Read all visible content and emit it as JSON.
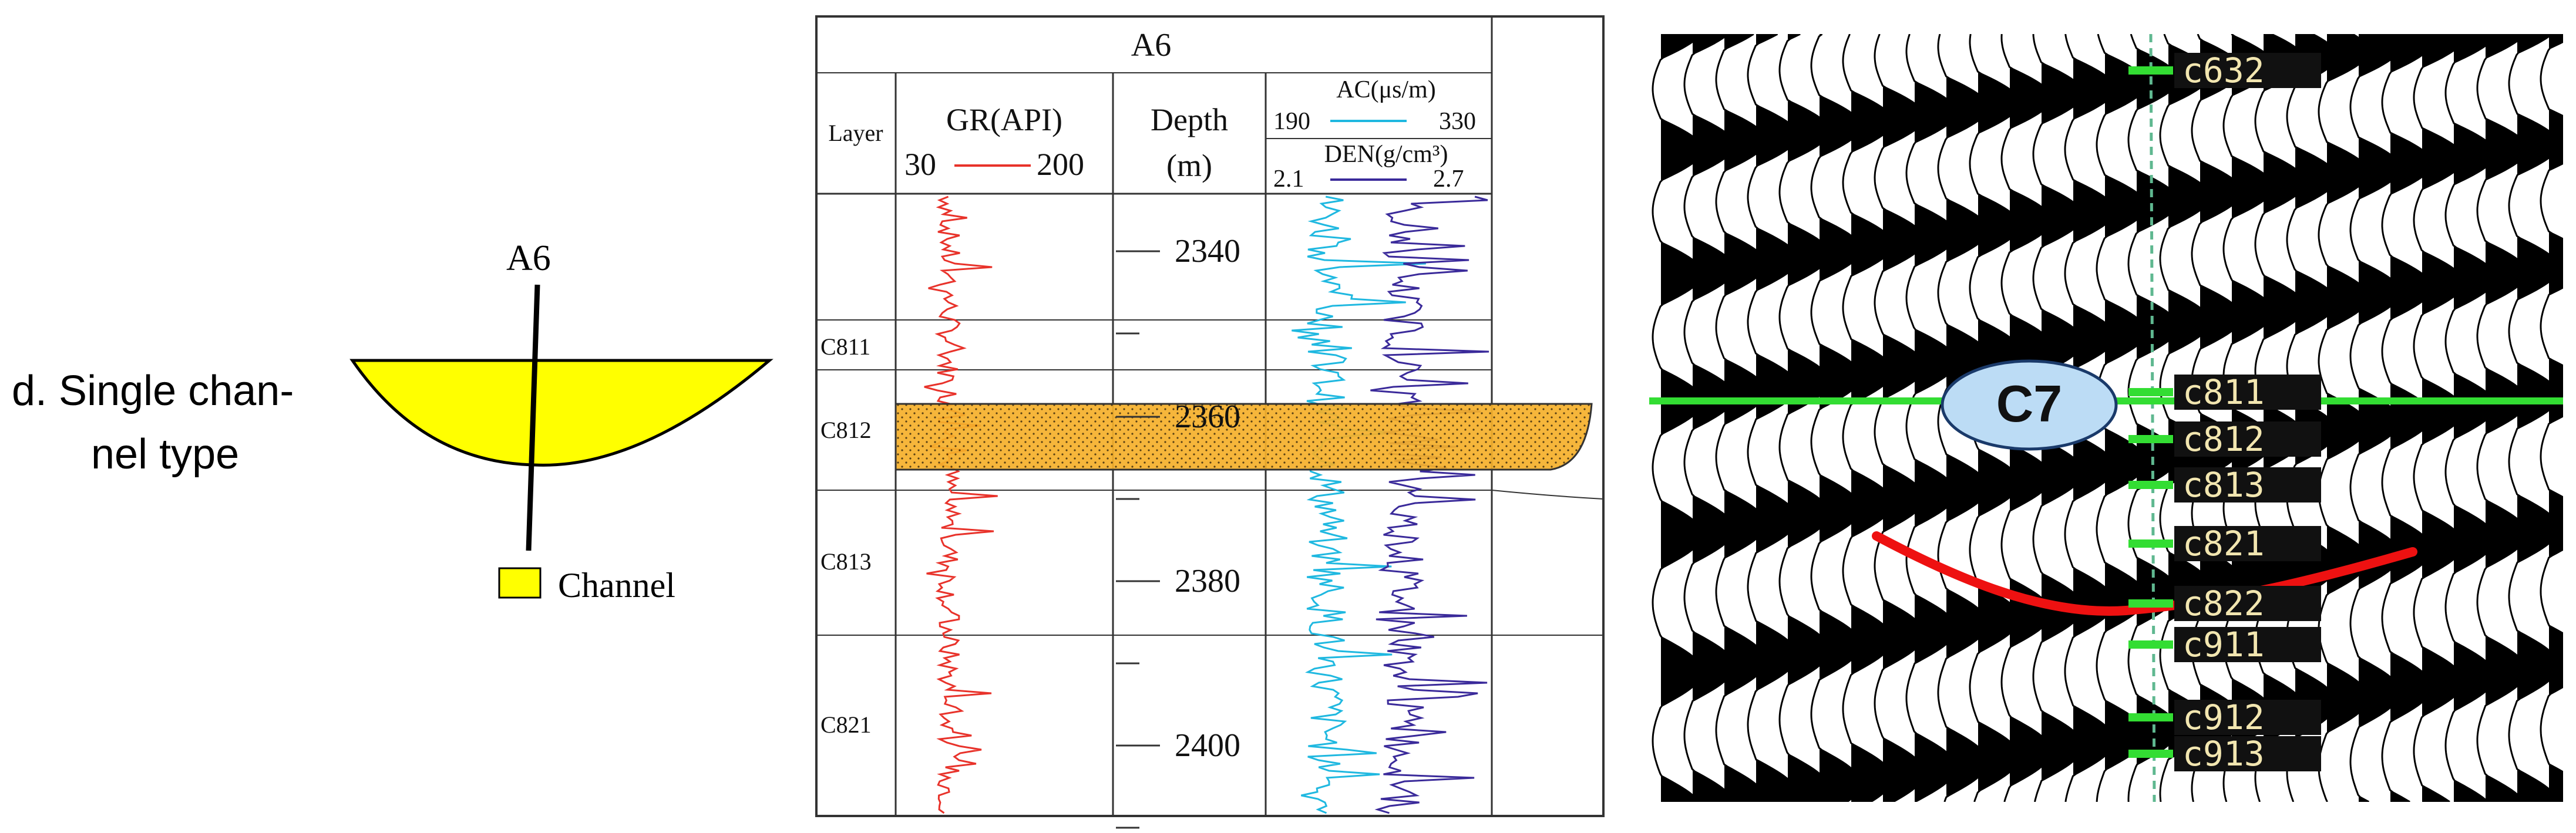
{
  "panel_d": {
    "caption_line1": "d. Single chan-",
    "caption_line2": "nel type",
    "well_label": "A6",
    "legend_label": "Channel",
    "colors": {
      "channel_fill": "#ffff00",
      "outline": "#000000"
    }
  },
  "well_log": {
    "well_name": "A6",
    "headers": {
      "layer": "Layer",
      "gr_title": "GR(API)",
      "gr_min": "30",
      "gr_max": "200",
      "depth_title": "Depth",
      "depth_unit": "(m)",
      "ac_title": "AC(μs/m)",
      "ac_min": "190",
      "ac_max": "330",
      "den_title": "DEN(g/cm³)",
      "den_min": "2.1",
      "den_max": "2.7"
    },
    "layers": [
      "C811",
      "C812",
      "C813",
      "C821"
    ],
    "depth_ticks": [
      "2340",
      "2360",
      "2380",
      "2400"
    ],
    "colors": {
      "gr": "#e8322a",
      "ac": "#1fb8e0",
      "den": "#3a2a9a",
      "sand": "#f5b02a",
      "frame": "#333333"
    }
  },
  "seismic": {
    "marker_main": "C7",
    "horizons": [
      "c632",
      "c811",
      "c812",
      "c813",
      "c821",
      "c822",
      "c911",
      "c912",
      "c913"
    ],
    "colors": {
      "pick": "#33dd33",
      "channel_line": "#ee1111",
      "label_bg": "#111111",
      "label_text": "#f2e6b0",
      "bubble": "#bcdcf5"
    }
  }
}
